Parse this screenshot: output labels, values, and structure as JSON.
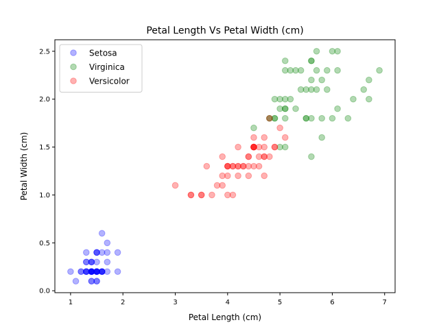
{
  "chart_data": {
    "type": "scatter",
    "title": "Petal Length Vs Petal Width (cm)",
    "xlabel": "Petal Length (cm)",
    "ylabel": "Petal Width (cm)",
    "xlim": [
      0.7,
      7.2
    ],
    "ylim": [
      -0.02,
      2.62
    ],
    "xticks": [
      1,
      2,
      3,
      4,
      5,
      6,
      7
    ],
    "xtick_labels": [
      "1",
      "2",
      "3",
      "4",
      "5",
      "6",
      "7"
    ],
    "yticks": [
      0.0,
      0.5,
      1.0,
      1.5,
      2.0,
      2.5
    ],
    "ytick_labels": [
      "0.0",
      "0.5",
      "1.0",
      "1.5",
      "2.0",
      "2.5"
    ],
    "grid": false,
    "legend_position": "top-left",
    "series": [
      {
        "name": "Setosa",
        "color": "#0000ff",
        "points": [
          [
            1.4,
            0.2
          ],
          [
            1.4,
            0.2
          ],
          [
            1.3,
            0.2
          ],
          [
            1.5,
            0.2
          ],
          [
            1.4,
            0.2
          ],
          [
            1.7,
            0.4
          ],
          [
            1.4,
            0.3
          ],
          [
            1.5,
            0.2
          ],
          [
            1.4,
            0.2
          ],
          [
            1.5,
            0.1
          ],
          [
            1.5,
            0.2
          ],
          [
            1.6,
            0.2
          ],
          [
            1.4,
            0.1
          ],
          [
            1.1,
            0.1
          ],
          [
            1.2,
            0.2
          ],
          [
            1.5,
            0.4
          ],
          [
            1.3,
            0.4
          ],
          [
            1.4,
            0.3
          ],
          [
            1.7,
            0.3
          ],
          [
            1.5,
            0.3
          ],
          [
            1.7,
            0.2
          ],
          [
            1.5,
            0.4
          ],
          [
            1.0,
            0.2
          ],
          [
            1.7,
            0.5
          ],
          [
            1.9,
            0.2
          ],
          [
            1.6,
            0.2
          ],
          [
            1.6,
            0.4
          ],
          [
            1.5,
            0.2
          ],
          [
            1.4,
            0.2
          ],
          [
            1.6,
            0.2
          ],
          [
            1.6,
            0.2
          ],
          [
            1.5,
            0.4
          ],
          [
            1.5,
            0.1
          ],
          [
            1.4,
            0.2
          ],
          [
            1.5,
            0.2
          ],
          [
            1.2,
            0.2
          ],
          [
            1.3,
            0.2
          ],
          [
            1.4,
            0.1
          ],
          [
            1.3,
            0.2
          ],
          [
            1.5,
            0.2
          ],
          [
            1.3,
            0.3
          ],
          [
            1.3,
            0.3
          ],
          [
            1.3,
            0.2
          ],
          [
            1.6,
            0.6
          ],
          [
            1.9,
            0.4
          ],
          [
            1.4,
            0.3
          ],
          [
            1.6,
            0.2
          ],
          [
            1.4,
            0.2
          ],
          [
            1.5,
            0.2
          ],
          [
            1.4,
            0.2
          ]
        ]
      },
      {
        "name": "Virginica",
        "color": "#008000",
        "points": [
          [
            6.0,
            2.5
          ],
          [
            5.1,
            1.9
          ],
          [
            5.9,
            2.1
          ],
          [
            5.6,
            1.8
          ],
          [
            5.8,
            2.2
          ],
          [
            6.6,
            2.1
          ],
          [
            4.5,
            1.7
          ],
          [
            6.3,
            1.8
          ],
          [
            5.8,
            1.8
          ],
          [
            6.1,
            2.5
          ],
          [
            5.1,
            2.0
          ],
          [
            5.3,
            1.9
          ],
          [
            5.5,
            2.1
          ],
          [
            5.0,
            2.0
          ],
          [
            5.1,
            2.4
          ],
          [
            5.3,
            2.3
          ],
          [
            5.5,
            1.8
          ],
          [
            6.7,
            2.2
          ],
          [
            6.9,
            2.3
          ],
          [
            5.0,
            1.5
          ],
          [
            5.7,
            2.3
          ],
          [
            4.9,
            2.0
          ],
          [
            6.7,
            2.0
          ],
          [
            4.9,
            1.8
          ],
          [
            5.7,
            2.1
          ],
          [
            6.0,
            1.8
          ],
          [
            4.8,
            1.8
          ],
          [
            4.9,
            1.8
          ],
          [
            5.6,
            2.1
          ],
          [
            5.8,
            1.6
          ],
          [
            6.1,
            1.9
          ],
          [
            6.4,
            2.0
          ],
          [
            5.6,
            2.2
          ],
          [
            5.1,
            1.5
          ],
          [
            5.6,
            1.4
          ],
          [
            6.1,
            2.3
          ],
          [
            5.6,
            2.4
          ],
          [
            5.5,
            1.8
          ],
          [
            4.8,
            1.8
          ],
          [
            5.4,
            2.1
          ],
          [
            5.6,
            2.4
          ],
          [
            5.1,
            2.3
          ],
          [
            5.1,
            1.9
          ],
          [
            5.9,
            2.3
          ],
          [
            5.7,
            2.5
          ],
          [
            5.2,
            2.3
          ],
          [
            5.0,
            1.9
          ],
          [
            5.2,
            2.0
          ],
          [
            5.4,
            2.3
          ],
          [
            5.1,
            1.8
          ]
        ]
      },
      {
        "name": "Versicolor",
        "color": "#ff0000",
        "points": [
          [
            4.7,
            1.4
          ],
          [
            4.5,
            1.5
          ],
          [
            4.9,
            1.5
          ],
          [
            4.0,
            1.3
          ],
          [
            4.6,
            1.5
          ],
          [
            4.5,
            1.3
          ],
          [
            4.7,
            1.6
          ],
          [
            3.3,
            1.0
          ],
          [
            4.6,
            1.3
          ],
          [
            3.9,
            1.4
          ],
          [
            3.5,
            1.0
          ],
          [
            4.2,
            1.5
          ],
          [
            4.0,
            1.0
          ],
          [
            4.7,
            1.4
          ],
          [
            3.6,
            1.3
          ],
          [
            4.4,
            1.4
          ],
          [
            4.5,
            1.5
          ],
          [
            4.1,
            1.0
          ],
          [
            4.5,
            1.5
          ],
          [
            3.9,
            1.1
          ],
          [
            4.8,
            1.8
          ],
          [
            4.0,
            1.3
          ],
          [
            4.9,
            1.5
          ],
          [
            4.7,
            1.2
          ],
          [
            4.3,
            1.3
          ],
          [
            4.4,
            1.4
          ],
          [
            4.8,
            1.4
          ],
          [
            5.0,
            1.7
          ],
          [
            4.5,
            1.5
          ],
          [
            3.5,
            1.0
          ],
          [
            3.8,
            1.1
          ],
          [
            3.7,
            1.0
          ],
          [
            3.9,
            1.2
          ],
          [
            5.1,
            1.6
          ],
          [
            4.5,
            1.5
          ],
          [
            4.5,
            1.6
          ],
          [
            4.7,
            1.5
          ],
          [
            4.4,
            1.3
          ],
          [
            4.1,
            1.3
          ],
          [
            4.0,
            1.3
          ],
          [
            4.4,
            1.2
          ],
          [
            4.6,
            1.4
          ],
          [
            4.0,
            1.2
          ],
          [
            3.3,
            1.0
          ],
          [
            4.2,
            1.3
          ],
          [
            4.2,
            1.2
          ],
          [
            4.2,
            1.3
          ],
          [
            4.3,
            1.3
          ],
          [
            3.0,
            1.1
          ],
          [
            4.1,
            1.3
          ]
        ]
      }
    ]
  }
}
